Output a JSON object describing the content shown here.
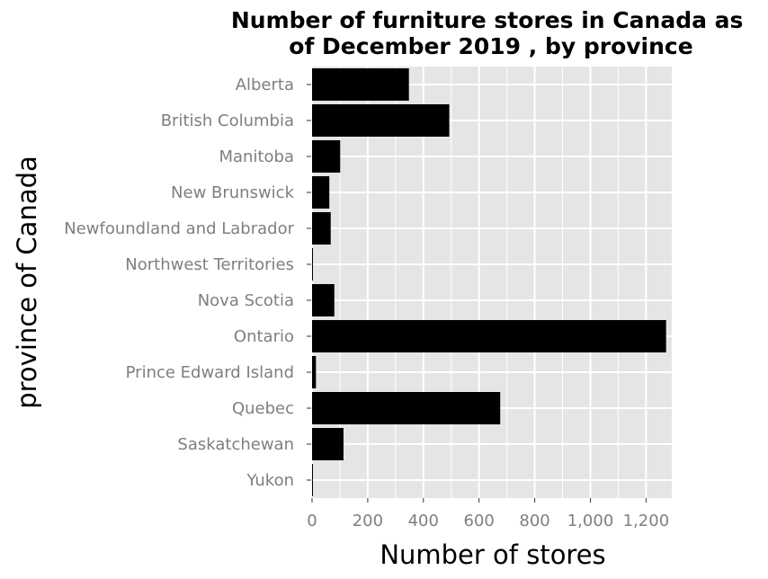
{
  "chart_data": {
    "type": "bar",
    "orientation": "horizontal",
    "title": "Number of furniture stores in Canada as of December 2019 , by province",
    "xlabel": "Number of stores",
    "ylabel": "province of Canada",
    "categories": [
      "Alberta",
      "British Columbia",
      "Manitoba",
      "New Brunswick",
      "Newfoundland and Labrador",
      "Northwest Territories",
      "Nova Scotia",
      "Ontario",
      "Prince Edward Island",
      "Quebec",
      "Saskatchewan",
      "Yukon"
    ],
    "values": [
      348,
      493,
      101,
      62,
      67,
      2,
      80,
      1272,
      14,
      676,
      113,
      3
    ],
    "xlim": [
      0,
      1300
    ],
    "xticks": [
      0,
      200,
      400,
      600,
      800,
      1000,
      1200
    ],
    "xtick_labels": [
      "0",
      "200",
      "400",
      "600",
      "800",
      "1,000",
      "1,200"
    ],
    "grid": true,
    "bar_color": "#000000",
    "panel_color": "#e5e5e5",
    "grid_color": "#ffffff"
  }
}
